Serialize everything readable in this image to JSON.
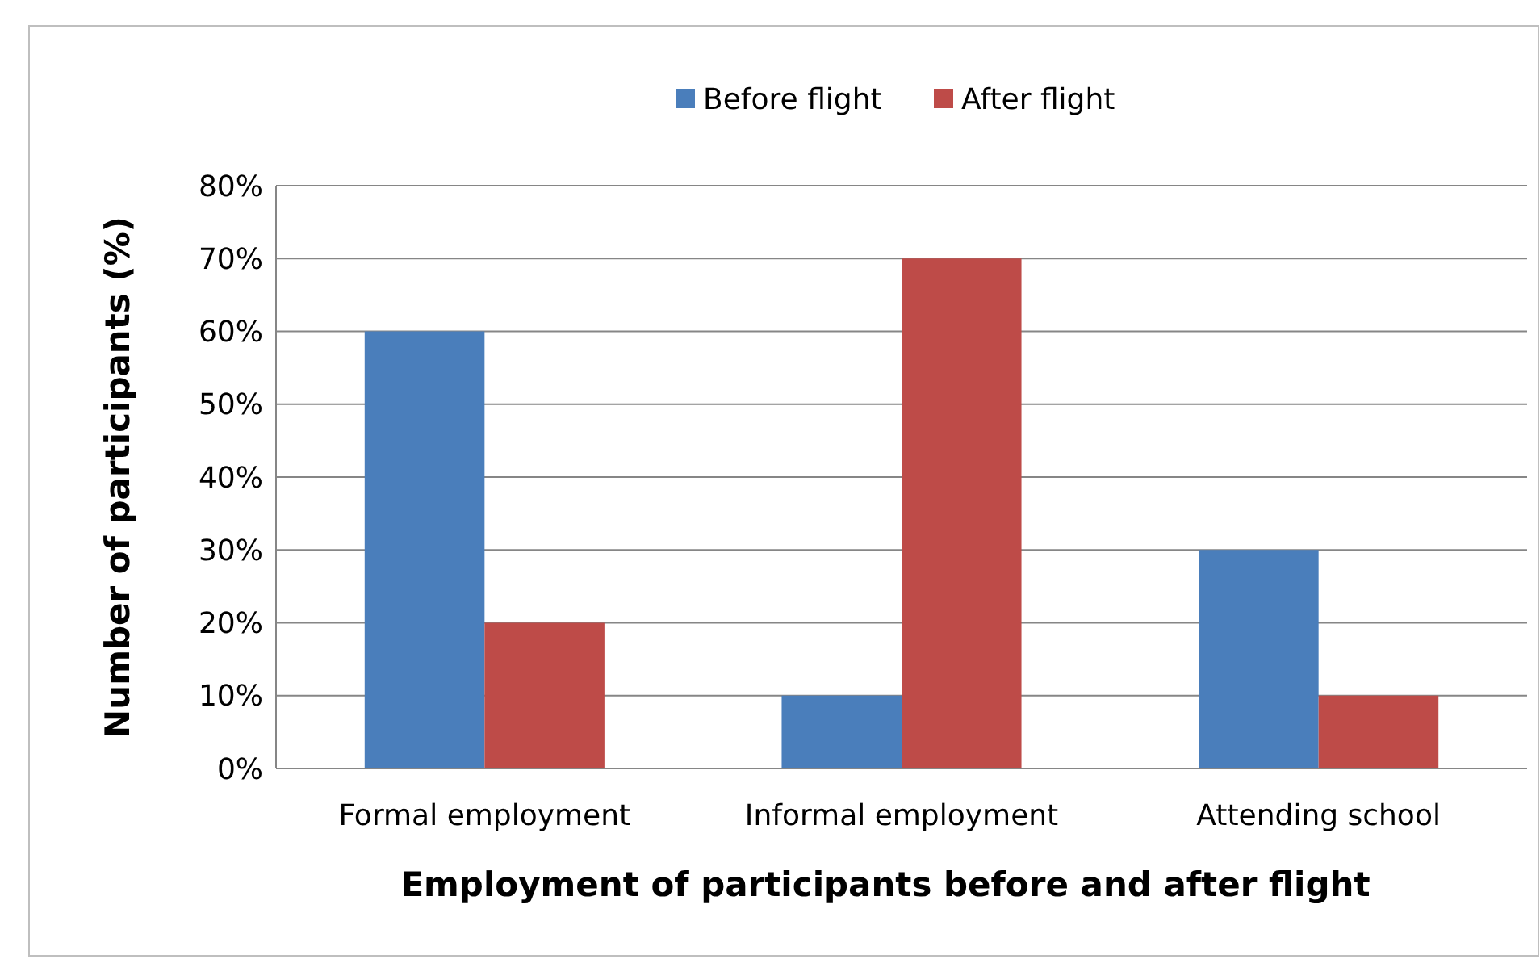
{
  "chart_data": {
    "type": "bar",
    "xlabel": "Employment of participants before and after flight",
    "ylabel": "Number of participants (%)",
    "categories": [
      "Formal employment",
      "Informal employment",
      "Attending school"
    ],
    "series": [
      {
        "name": "Before flight",
        "color": "#4a7ebb",
        "values": [
          60,
          10,
          30
        ]
      },
      {
        "name": "After flight",
        "color": "#be4b48",
        "values": [
          20,
          70,
          10
        ]
      }
    ],
    "ylim": [
      0,
      80
    ],
    "yticks": [
      {
        "value": 0,
        "label": "0%"
      },
      {
        "value": 10,
        "label": "10%"
      },
      {
        "value": 20,
        "label": "20%"
      },
      {
        "value": 30,
        "label": "30%"
      },
      {
        "value": 40,
        "label": "40%"
      },
      {
        "value": 50,
        "label": "50%"
      },
      {
        "value": 60,
        "label": "60%"
      },
      {
        "value": 70,
        "label": "70%"
      },
      {
        "value": 80,
        "label": "80%"
      }
    ],
    "grid": "y",
    "legend": "top"
  }
}
